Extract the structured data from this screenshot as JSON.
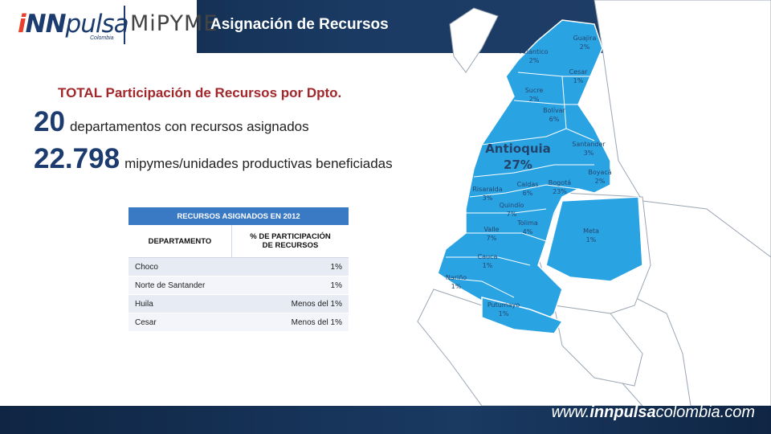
{
  "header": {
    "logo_i": "i",
    "logo_nn": "NN",
    "logo_pulsa": "pulsa",
    "logo_country": "Colombia",
    "logo_mipyme": "MiPYME",
    "title": "Asignación de Recursos"
  },
  "summary": {
    "subtitle": "TOTAL Participación de Recursos por Dpto.",
    "stat1_number": "20",
    "stat1_text": "departamentos con recursos asignados",
    "stat2_number": "22.798",
    "stat2_text": "mipymes/unidades productivas beneficiadas"
  },
  "table": {
    "caption": "RECURSOS ASIGNADOS EN 2012",
    "col1": "DEPARTAMENTO",
    "col2_line1": "% DE PARTICIPACIÓN",
    "col2_line2": "DE RECURSOS",
    "rows": [
      {
        "dept": "Choco",
        "pct": "1%"
      },
      {
        "dept": "Norte de Santander",
        "pct": "1%"
      },
      {
        "dept": "Huila",
        "pct": "Menos del 1%"
      },
      {
        "dept": "Cesar",
        "pct": "Menos del 1%"
      }
    ]
  },
  "map": {
    "highlight_color": "#2aa3e3",
    "other_color": "#ffffff",
    "departments": [
      {
        "name": "Guajira",
        "pct": "2%"
      },
      {
        "name": "Atlántico",
        "pct": "2%"
      },
      {
        "name": "Cesar",
        "pct": "1%"
      },
      {
        "name": "Sucre",
        "pct": "2%"
      },
      {
        "name": "Bolívar",
        "pct": "6%"
      },
      {
        "name": "Antioquia",
        "pct": "27%"
      },
      {
        "name": "Santander",
        "pct": "3%"
      },
      {
        "name": "Boyacá",
        "pct": "2%"
      },
      {
        "name": "Caldas",
        "pct": "6%"
      },
      {
        "name": "Risaralda",
        "pct": "3%"
      },
      {
        "name": "Bogotá",
        "pct": "23%"
      },
      {
        "name": "Quindío",
        "pct": "7%"
      },
      {
        "name": "Tolima",
        "pct": "4%"
      },
      {
        "name": "Valle",
        "pct": "7%"
      },
      {
        "name": "Meta",
        "pct": "1%"
      },
      {
        "name": "Cauca",
        "pct": "1%"
      },
      {
        "name": "Nariño",
        "pct": "1%"
      },
      {
        "name": "Putumayo",
        "pct": "1%"
      }
    ]
  },
  "footer": {
    "website_prefix": "www.",
    "website_brand": "innpulsa",
    "website_suffix": "colombia.com"
  }
}
